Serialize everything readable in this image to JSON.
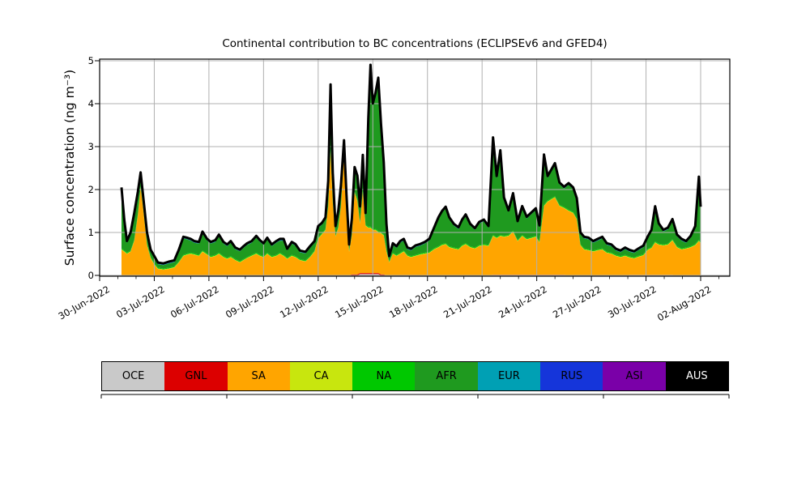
{
  "title": "Continental contribution to BC concentrations (ECLIPSEv6 and GFED4)",
  "ylabel": "Surface concentration (ng m⁻³)",
  "yticks": [
    "0",
    "1",
    "2",
    "3",
    "4",
    "5"
  ],
  "xticks": [
    {
      "t": 0,
      "label": "30-Jun-2022"
    },
    {
      "t": 3,
      "label": "03-Jul-2022"
    },
    {
      "t": 6,
      "label": "06-Jul-2022"
    },
    {
      "t": 9,
      "label": "09-Jul-2022"
    },
    {
      "t": 12,
      "label": "12-Jul-2022"
    },
    {
      "t": 15,
      "label": "15-Jul-2022"
    },
    {
      "t": 18,
      "label": "18-Jul-2022"
    },
    {
      "t": 21,
      "label": "21-Jul-2022"
    },
    {
      "t": 24,
      "label": "24-Jul-2022"
    },
    {
      "t": 27,
      "label": "27-Jul-2022"
    },
    {
      "t": 30,
      "label": "30-Jul-2022"
    },
    {
      "t": 33,
      "label": "02-Aug-2022"
    }
  ],
  "legend": [
    {
      "label": "OCE",
      "color": "#c9c9c9",
      "text_color": "#000000"
    },
    {
      "label": "GNL",
      "color": "#dc0000",
      "text_color": "#000000"
    },
    {
      "label": "SA",
      "color": "#ffa500",
      "text_color": "#000000"
    },
    {
      "label": "CA",
      "color": "#c8e60e",
      "text_color": "#000000"
    },
    {
      "label": "NA",
      "color": "#00c800",
      "text_color": "#000000"
    },
    {
      "label": "AFR",
      "color": "#1f9a1f",
      "text_color": "#000000"
    },
    {
      "label": "EUR",
      "color": "#00a0b4",
      "text_color": "#000000"
    },
    {
      "label": "RUS",
      "color": "#1535da",
      "text_color": "#000000"
    },
    {
      "label": "ASI",
      "color": "#7a00a8",
      "text_color": "#000000"
    },
    {
      "label": "AUS",
      "color": "#000000",
      "text_color": "#ffffff"
    }
  ],
  "chart_data": {
    "type": "area",
    "stacked": true,
    "title": "Continental contribution to BC concentrations (ECLIPSEv6 and GFED4)",
    "xlabel": "",
    "ylabel": "Surface concentration (ng m⁻³)",
    "x_unit": "days since 30-Jun-2022 00:00",
    "xlim": [
      0,
      34.6
    ],
    "ylim": [
      0,
      5
    ],
    "grid": true,
    "grid_color": "#b0b0b0",
    "legend_position": "bottom strip",
    "series_order": [
      "OCE",
      "GNL",
      "SA",
      "CA",
      "NA",
      "AFR",
      "EUR",
      "RUS",
      "ASI",
      "AUS"
    ],
    "total_line": {
      "color": "#000000",
      "width": 3
    },
    "constant_series": {
      "CA": 0.01,
      "NA": 0.02,
      "EUR": 0.01,
      "RUS": 0.02,
      "ASI": 0.01,
      "AUS": 0
    },
    "segment_series": {
      "OCE": [
        {
          "t0": 14.2,
          "t1": 15.4,
          "v": 0.03
        }
      ],
      "GNL": [
        {
          "t0": 13.8,
          "t1": 15.6,
          "v": 0.025
        },
        {
          "t0": 21.5,
          "t1": 25.5,
          "v": 0.015
        },
        {
          "t0": 29.0,
          "t1": 31.5,
          "v": 0.012
        }
      ]
    },
    "points_format": "[t_days, SA, AFR] — dominant series; total black line = stack sum",
    "points": [
      [
        1.2,
        0.6,
        1.38
      ],
      [
        1.35,
        0.55,
        0.68
      ],
      [
        1.5,
        0.5,
        0.23
      ],
      [
        1.7,
        0.55,
        0.38
      ],
      [
        1.9,
        0.8,
        0.58
      ],
      [
        2.1,
        1.4,
        0.48
      ],
      [
        2.25,
        2.05,
        0.28
      ],
      [
        2.4,
        1.5,
        0.23
      ],
      [
        2.6,
        0.7,
        0.23
      ],
      [
        2.8,
        0.4,
        0.13
      ],
      [
        3.0,
        0.25,
        0.13
      ],
      [
        3.2,
        0.15,
        0.08
      ],
      [
        3.5,
        0.13,
        0.08
      ],
      [
        3.8,
        0.15,
        0.1
      ],
      [
        4.1,
        0.18,
        0.1
      ],
      [
        4.35,
        0.3,
        0.23
      ],
      [
        4.6,
        0.45,
        0.38
      ],
      [
        4.8,
        0.48,
        0.33
      ],
      [
        5.0,
        0.5,
        0.28
      ],
      [
        5.2,
        0.48,
        0.25
      ],
      [
        5.45,
        0.45,
        0.26
      ],
      [
        5.65,
        0.55,
        0.4
      ],
      [
        5.9,
        0.48,
        0.3
      ],
      [
        6.1,
        0.42,
        0.29
      ],
      [
        6.35,
        0.45,
        0.3
      ],
      [
        6.55,
        0.5,
        0.38
      ],
      [
        6.8,
        0.42,
        0.29
      ],
      [
        7.0,
        0.38,
        0.27
      ],
      [
        7.2,
        0.42,
        0.31
      ],
      [
        7.45,
        0.35,
        0.23
      ],
      [
        7.7,
        0.3,
        0.23
      ],
      [
        7.9,
        0.35,
        0.26
      ],
      [
        8.1,
        0.4,
        0.28
      ],
      [
        8.35,
        0.45,
        0.28
      ],
      [
        8.6,
        0.5,
        0.35
      ],
      [
        8.8,
        0.45,
        0.3
      ],
      [
        9.0,
        0.42,
        0.26
      ],
      [
        9.2,
        0.5,
        0.31
      ],
      [
        9.45,
        0.42,
        0.23
      ],
      [
        9.7,
        0.45,
        0.28
      ],
      [
        9.9,
        0.5,
        0.28
      ],
      [
        10.1,
        0.45,
        0.33
      ],
      [
        10.3,
        0.38,
        0.17
      ],
      [
        10.55,
        0.45,
        0.26
      ],
      [
        10.75,
        0.42,
        0.24
      ],
      [
        11.0,
        0.35,
        0.16
      ],
      [
        11.3,
        0.32,
        0.16
      ],
      [
        11.55,
        0.42,
        0.19
      ],
      [
        11.8,
        0.55,
        0.18
      ],
      [
        12.0,
        0.85,
        0.23
      ],
      [
        12.2,
        0.95,
        0.2
      ],
      [
        12.4,
        1.05,
        0.23
      ],
      [
        12.55,
        1.6,
        0.53
      ],
      [
        12.68,
        2.9,
        1.48
      ],
      [
        12.8,
        1.7,
        0.63
      ],
      [
        12.95,
        0.9,
        0.18
      ],
      [
        13.1,
        1.1,
        0.33
      ],
      [
        13.25,
        1.6,
        0.43
      ],
      [
        13.42,
        2.8,
        0.28
      ],
      [
        13.55,
        1.4,
        0.43
      ],
      [
        13.7,
        0.55,
        0.1
      ],
      [
        13.85,
        0.9,
        0.33
      ],
      [
        14.0,
        1.9,
        0.53
      ],
      [
        14.15,
        1.7,
        0.53
      ],
      [
        14.3,
        1.15,
        0.33
      ],
      [
        14.45,
        1.9,
        0.78
      ],
      [
        14.6,
        1.1,
        0.23
      ],
      [
        14.75,
        1.05,
        2.48
      ],
      [
        14.87,
        1.05,
        3.73
      ],
      [
        15.0,
        1.0,
        2.88
      ],
      [
        15.15,
        1.0,
        3.13
      ],
      [
        15.3,
        0.95,
        3.53
      ],
      [
        15.45,
        0.95,
        2.48
      ],
      [
        15.6,
        0.9,
        1.63
      ],
      [
        15.75,
        0.55,
        0.58
      ],
      [
        15.9,
        0.3,
        0.08
      ],
      [
        16.1,
        0.5,
        0.18
      ],
      [
        16.3,
        0.45,
        0.16
      ],
      [
        16.5,
        0.5,
        0.23
      ],
      [
        16.7,
        0.55,
        0.23
      ],
      [
        16.9,
        0.45,
        0.13
      ],
      [
        17.1,
        0.42,
        0.13
      ],
      [
        17.35,
        0.45,
        0.18
      ],
      [
        17.6,
        0.48,
        0.18
      ],
      [
        17.85,
        0.5,
        0.21
      ],
      [
        18.1,
        0.52,
        0.26
      ],
      [
        18.35,
        0.6,
        0.43
      ],
      [
        18.6,
        0.65,
        0.63
      ],
      [
        18.8,
        0.7,
        0.73
      ],
      [
        19.0,
        0.72,
        0.81
      ],
      [
        19.2,
        0.65,
        0.63
      ],
      [
        19.45,
        0.62,
        0.51
      ],
      [
        19.7,
        0.6,
        0.45
      ],
      [
        19.9,
        0.68,
        0.55
      ],
      [
        20.1,
        0.72,
        0.63
      ],
      [
        20.35,
        0.65,
        0.48
      ],
      [
        20.6,
        0.62,
        0.41
      ],
      [
        20.85,
        0.68,
        0.5
      ],
      [
        21.1,
        0.7,
        0.53
      ],
      [
        21.35,
        0.68,
        0.4
      ],
      [
        21.6,
        0.9,
        2.23
      ],
      [
        21.8,
        0.85,
        1.38
      ],
      [
        22.0,
        0.9,
        1.93
      ],
      [
        22.2,
        0.88,
        0.85
      ],
      [
        22.45,
        0.9,
        0.53
      ],
      [
        22.7,
        1.0,
        0.83
      ],
      [
        22.95,
        0.78,
        0.4
      ],
      [
        23.2,
        0.9,
        0.63
      ],
      [
        23.45,
        0.82,
        0.46
      ],
      [
        23.7,
        0.85,
        0.53
      ],
      [
        23.95,
        0.88,
        0.6
      ],
      [
        24.15,
        0.75,
        0.33
      ],
      [
        24.4,
        1.6,
        1.13
      ],
      [
        24.6,
        1.7,
        0.53
      ],
      [
        24.8,
        1.75,
        0.63
      ],
      [
        25.0,
        1.8,
        0.73
      ],
      [
        25.25,
        1.6,
        0.48
      ],
      [
        25.5,
        1.55,
        0.43
      ],
      [
        25.75,
        1.5,
        0.58
      ],
      [
        26.0,
        1.45,
        0.53
      ],
      [
        26.2,
        1.3,
        0.43
      ],
      [
        26.4,
        0.7,
        0.23
      ],
      [
        26.6,
        0.6,
        0.23
      ],
      [
        26.85,
        0.58,
        0.23
      ],
      [
        27.1,
        0.55,
        0.18
      ],
      [
        27.35,
        0.58,
        0.2
      ],
      [
        27.6,
        0.6,
        0.23
      ],
      [
        27.85,
        0.52,
        0.16
      ],
      [
        28.1,
        0.5,
        0.15
      ],
      [
        28.35,
        0.45,
        0.1
      ],
      [
        28.6,
        0.42,
        0.09
      ],
      [
        28.85,
        0.45,
        0.13
      ],
      [
        29.1,
        0.4,
        0.11
      ],
      [
        29.35,
        0.38,
        0.1
      ],
      [
        29.6,
        0.42,
        0.13
      ],
      [
        29.85,
        0.45,
        0.16
      ],
      [
        30.1,
        0.58,
        0.25
      ],
      [
        30.3,
        0.62,
        0.36
      ],
      [
        30.5,
        0.75,
        0.78
      ],
      [
        30.7,
        0.7,
        0.43
      ],
      [
        30.95,
        0.68,
        0.3
      ],
      [
        31.2,
        0.7,
        0.33
      ],
      [
        31.45,
        0.8,
        0.43
      ],
      [
        31.7,
        0.65,
        0.23
      ],
      [
        31.95,
        0.6,
        0.18
      ],
      [
        32.2,
        0.62,
        0.11
      ],
      [
        32.45,
        0.65,
        0.2
      ],
      [
        32.7,
        0.7,
        0.38
      ],
      [
        32.9,
        0.8,
        1.43
      ],
      [
        33.0,
        0.75,
        0.78
      ]
    ]
  }
}
